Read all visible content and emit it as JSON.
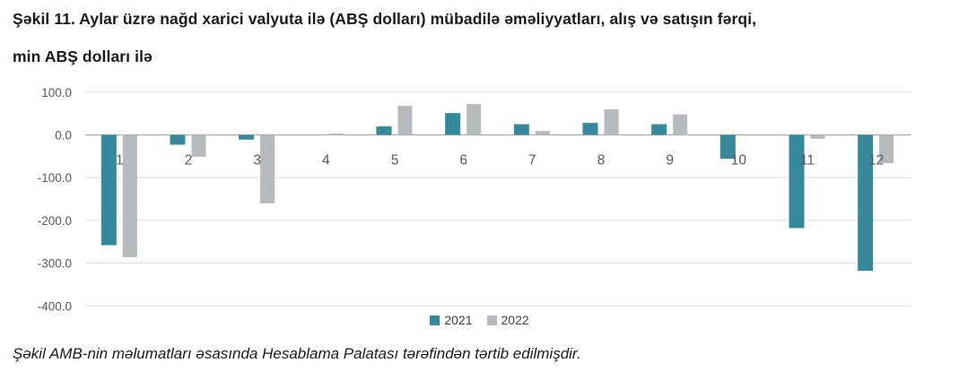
{
  "title": "Şəkil 11. Aylar üzrə nağd xarici valyuta ilə (ABŞ dolları) mübadilə əməliyyatları, alış və satışın fərqi,\nmin ABŞ dolları ilə",
  "footer": "Şəkil AMB-nin məlumatları əsasında Hesablama Palatası tərəfindən tərtib edilmişdir.",
  "chart_data": {
    "type": "bar",
    "title": "",
    "xlabel": "",
    "ylabel": "",
    "categories": [
      "1",
      "2",
      "3",
      "4",
      "5",
      "6",
      "7",
      "8",
      "9",
      "10",
      "11",
      "12"
    ],
    "series": [
      {
        "name": "2021",
        "color": "#35899A",
        "values": [
          -258,
          -23,
          -11,
          0,
          20,
          51,
          25,
          28,
          25,
          -56,
          -218,
          -318
        ]
      },
      {
        "name": "2022",
        "color": "#B5BABC",
        "values": [
          -286,
          -51,
          -160,
          3,
          68,
          72,
          9,
          60,
          48,
          0,
          -9,
          -66
        ]
      }
    ],
    "ylim": [
      -400,
      100
    ],
    "yticks": [
      100,
      0,
      -100,
      -200,
      -300,
      -400
    ],
    "ytick_labels": [
      "100.0",
      "0.0",
      "-100.0",
      "-200.0",
      "-300.0",
      "-400.0"
    ],
    "grid": true,
    "grid_color": "#DCDCDC",
    "axis_color": "#A6ABAD",
    "legend_position": "bottom"
  }
}
